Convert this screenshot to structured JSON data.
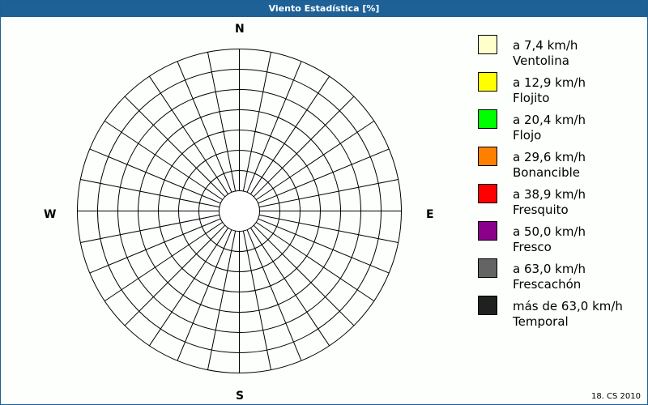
{
  "title": "Viento Estadística [%]",
  "chart_data": {
    "type": "wind-rose",
    "directions_count": 32,
    "ring_count": 7,
    "compass": {
      "n": "N",
      "e": "E",
      "s": "S",
      "w": "W"
    },
    "series": [],
    "legend": [
      {
        "range": "a 7,4 km/h",
        "name": "Ventolina",
        "color": "#ffffcc"
      },
      {
        "range": "a 12,9 km/h",
        "name": "Flojito",
        "color": "#ffff00"
      },
      {
        "range": "a 20,4 km/h",
        "name": "Flojo",
        "color": "#00ff00"
      },
      {
        "range": "a 29,6 km/h",
        "name": "Bonancible",
        "color": "#ff8000"
      },
      {
        "range": "a 38,9 km/h",
        "name": "Fresquito",
        "color": "#ff0000"
      },
      {
        "range": "a 50,0 km/h",
        "name": "Fresco",
        "color": "#8b008b"
      },
      {
        "range": "a 63,0 km/h",
        "name": "Frescachón",
        "color": "#646464"
      },
      {
        "range": "más de 63,0 km/h",
        "name": "Temporal",
        "color": "#202020"
      }
    ]
  },
  "footer": "18. CS 2010"
}
